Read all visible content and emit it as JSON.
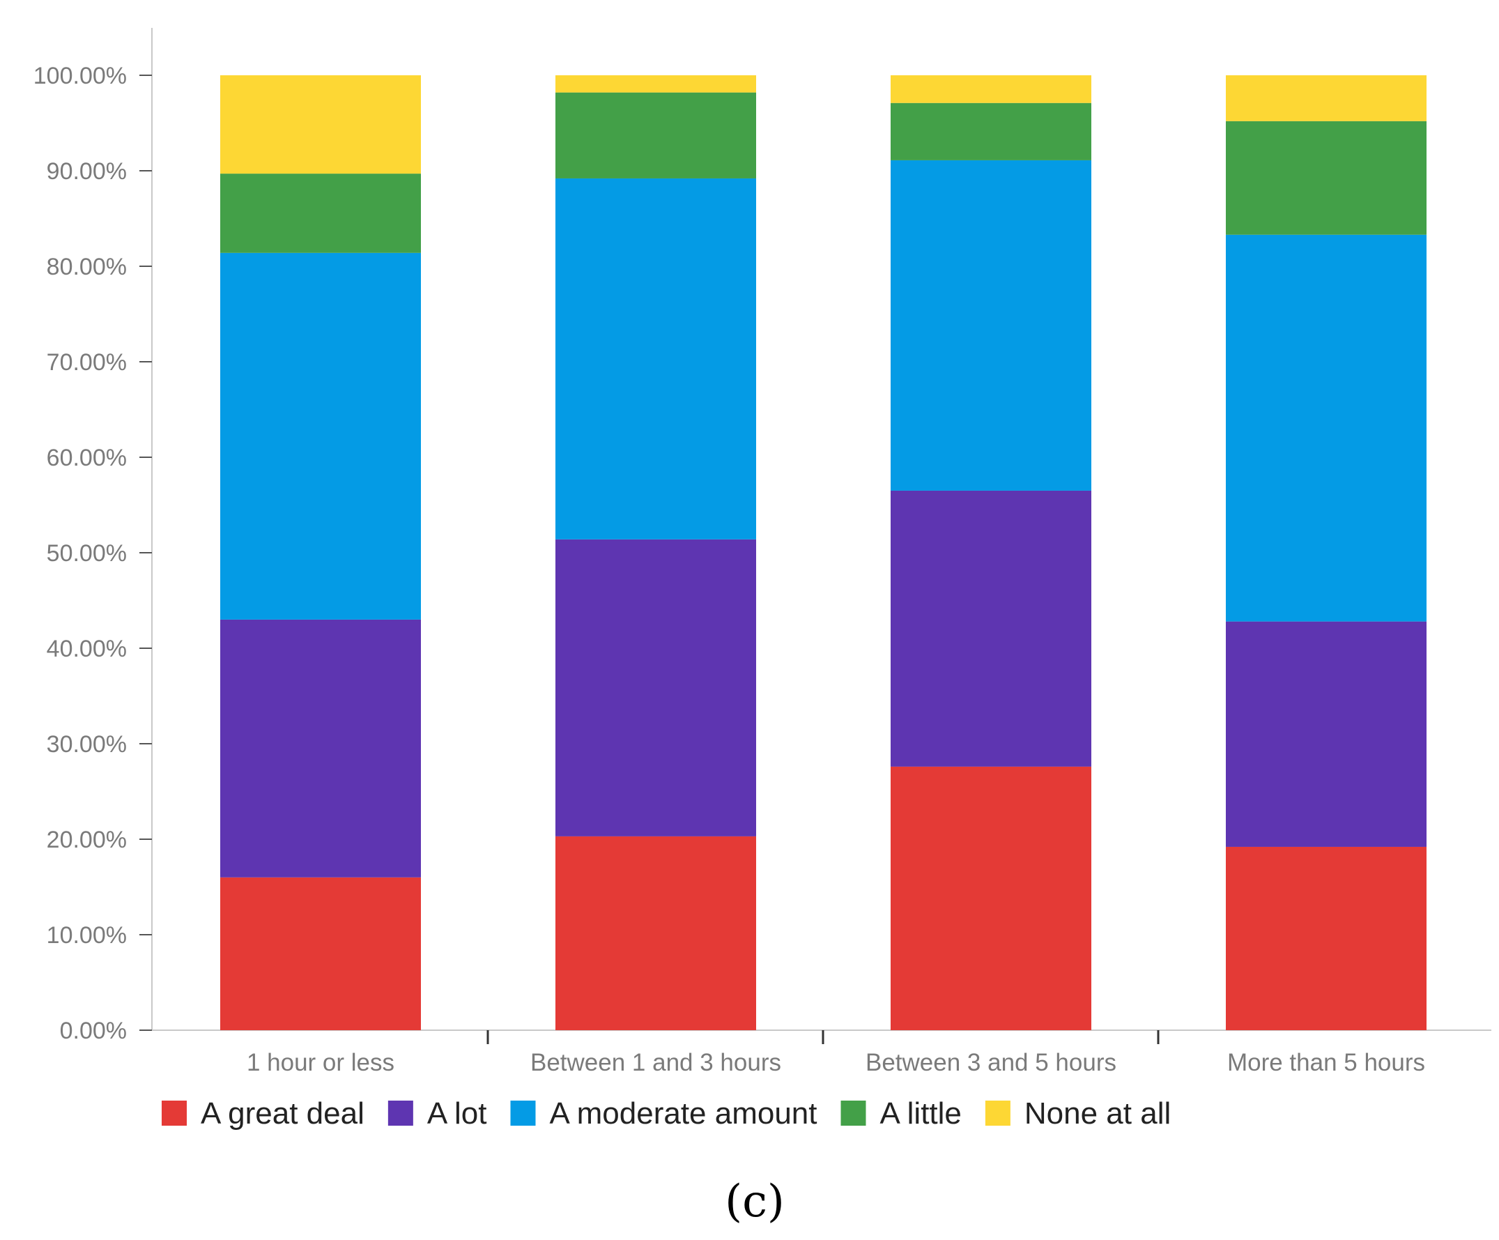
{
  "chart_data": {
    "type": "bar",
    "stacked": true,
    "categories": [
      "1 hour or less",
      "Between 1 and 3 hours",
      "Between 3 and 5 hours",
      "More than 5 hours"
    ],
    "series": [
      {
        "name": "A great deal",
        "color": "#e43a36",
        "values": [
          16.0,
          20.3,
          27.6,
          19.2
        ]
      },
      {
        "name": "A lot",
        "color": "#5e35b1",
        "values": [
          27.0,
          31.1,
          28.9,
          23.6
        ]
      },
      {
        "name": "A moderate amount",
        "color": "#049be5",
        "values": [
          38.4,
          37.8,
          34.6,
          40.5
        ]
      },
      {
        "name": "A little",
        "color": "#43a048",
        "values": [
          8.3,
          9.0,
          6.0,
          11.9
        ]
      },
      {
        "name": "None at all",
        "color": "#fdd734",
        "values": [
          10.3,
          1.8,
          2.9,
          4.8
        ]
      }
    ],
    "ylim": [
      0,
      100
    ],
    "yticks": [
      "0.00%",
      "10.00%",
      "20.00%",
      "30.00%",
      "40.00%",
      "50.00%",
      "60.00%",
      "70.00%",
      "80.00%",
      "90.00%",
      "100.00%"
    ],
    "xlabel": "",
    "ylabel": "",
    "title": "",
    "legend_position": "bottom-left"
  },
  "panel_label": "(c)"
}
